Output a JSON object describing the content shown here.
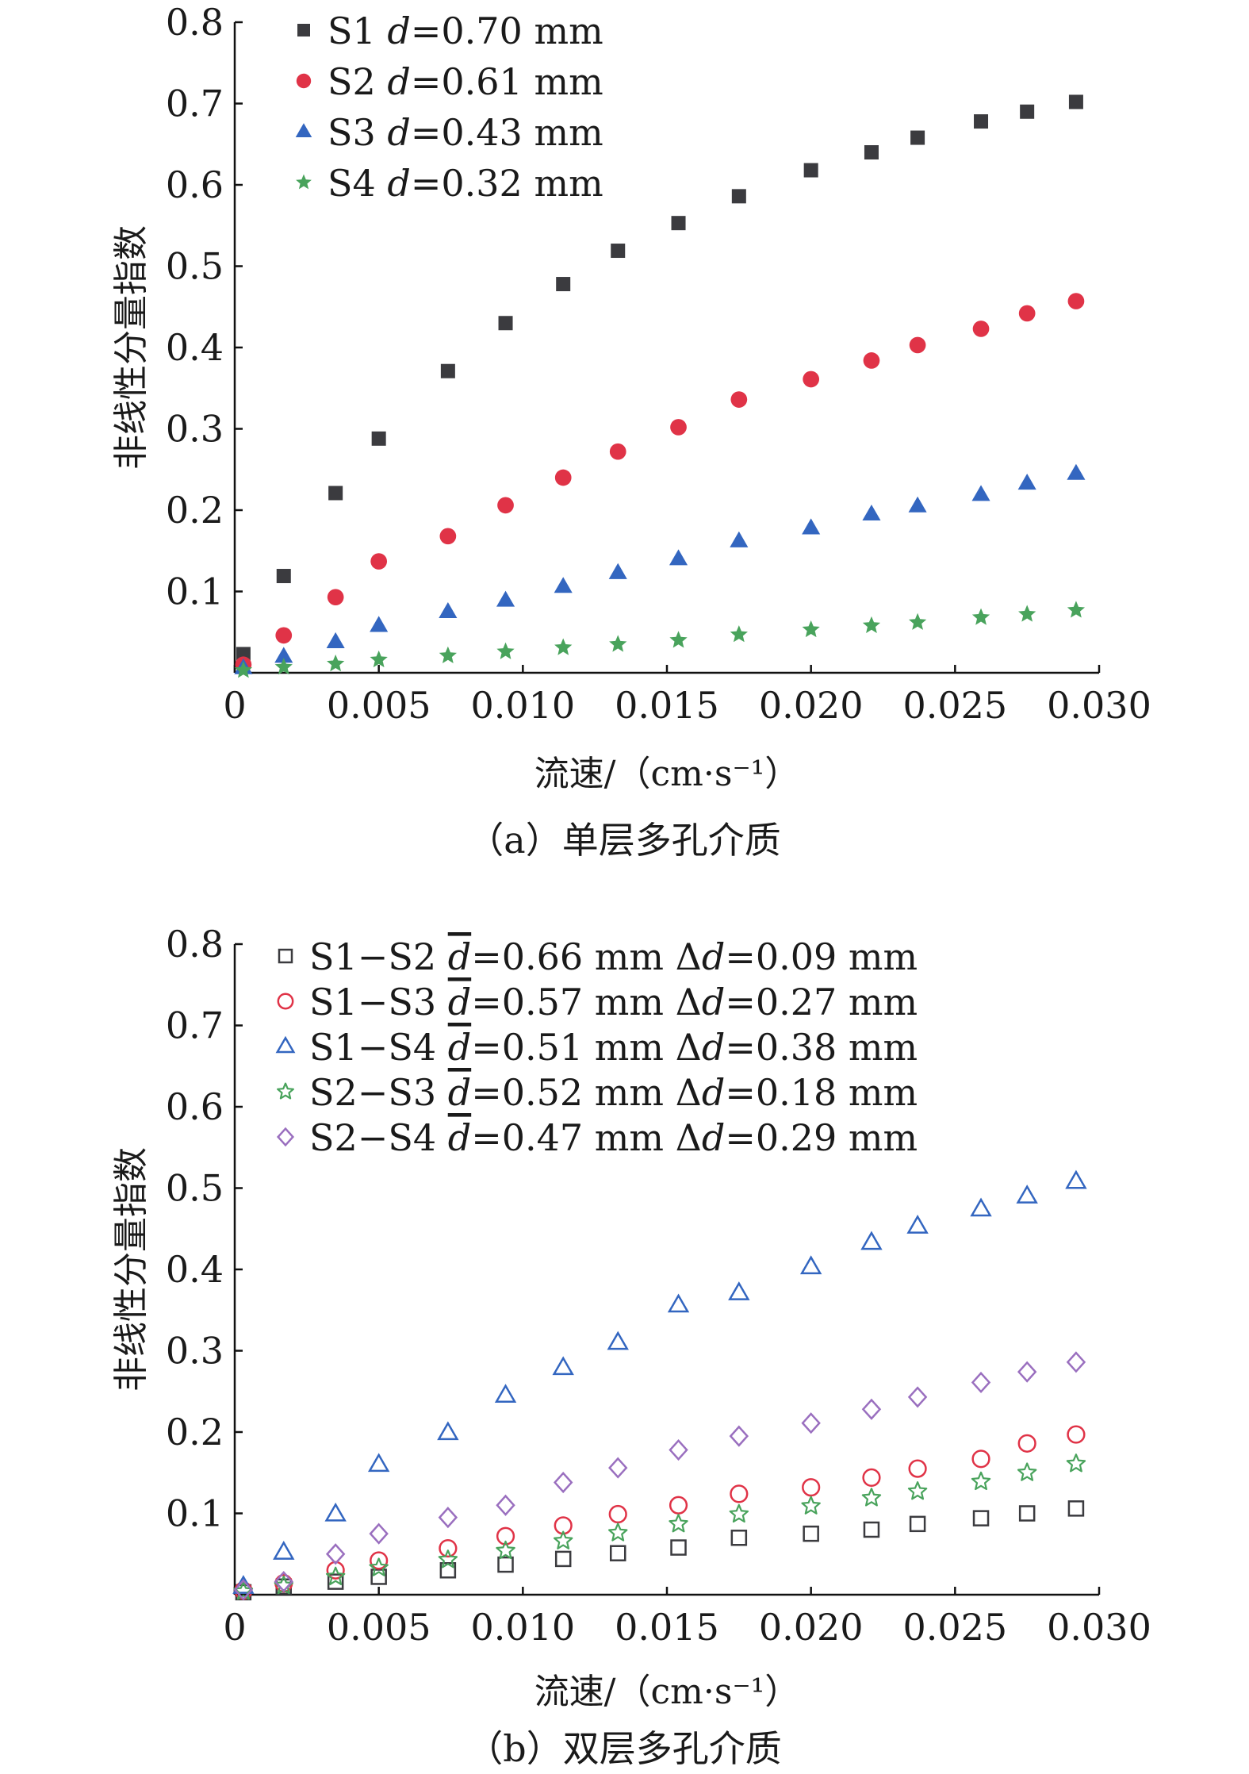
{
  "colors": {
    "S1": "#3b3b3f",
    "S2": "#e03347",
    "S3": "#3366c0",
    "S4": "#49a35c",
    "S2S4": "#9a6fbf"
  },
  "chart_data": [
    {
      "type": "scatter",
      "title": "",
      "xlabel": "流速/（cm·s⁻¹）",
      "ylabel": "非线性分量指数",
      "caption": "（a）单层多孔介质",
      "xlim": [
        0,
        0.03
      ],
      "ylim": [
        0,
        0.8
      ],
      "x_ticks": [
        "0",
        "0.005",
        "0.010",
        "0.015",
        "0.020",
        "0.025",
        "0.030"
      ],
      "y_ticks": [
        "0.1",
        "0.2",
        "0.3",
        "0.4",
        "0.5",
        "0.6",
        "0.7",
        "0.8"
      ],
      "legend_position": "top-left",
      "grid": false,
      "x": [
        0.0003,
        0.0017,
        0.0035,
        0.005,
        0.0074,
        0.0094,
        0.0114,
        0.0133,
        0.0154,
        0.0175,
        0.02,
        0.0221,
        0.0237,
        0.0259,
        0.0275,
        0.0292
      ],
      "series": [
        {
          "label": "S1 ",
          "label_italic": "d",
          "label_tail": "=0.70 mm",
          "marker": "square-filled",
          "color_key": "S1",
          "values": [
            0.023,
            0.119,
            0.221,
            0.288,
            0.371,
            0.43,
            0.478,
            0.519,
            0.553,
            0.586,
            0.618,
            0.64,
            0.658,
            0.678,
            0.69,
            0.702
          ]
        },
        {
          "label": "S2 ",
          "label_italic": "d",
          "label_tail": "=0.61 mm",
          "marker": "circle-filled",
          "color_key": "S2",
          "values": [
            0.01,
            0.046,
            0.093,
            0.137,
            0.168,
            0.206,
            0.24,
            0.272,
            0.302,
            0.336,
            0.361,
            0.384,
            0.403,
            0.423,
            0.442,
            0.457
          ]
        },
        {
          "label": "S3 ",
          "label_italic": "d",
          "label_tail": "=0.43 mm",
          "marker": "triangle-filled",
          "color_key": "S3",
          "values": [
            0.006,
            0.02,
            0.038,
            0.058,
            0.075,
            0.089,
            0.106,
            0.123,
            0.14,
            0.162,
            0.178,
            0.195,
            0.205,
            0.219,
            0.233,
            0.245
          ]
        },
        {
          "label": "S4 ",
          "label_italic": "d",
          "label_tail": "=0.32 mm",
          "marker": "star-filled",
          "color_key": "S4",
          "values": [
            0.003,
            0.007,
            0.011,
            0.016,
            0.021,
            0.026,
            0.031,
            0.035,
            0.04,
            0.047,
            0.053,
            0.058,
            0.062,
            0.068,
            0.072,
            0.077
          ]
        }
      ]
    },
    {
      "type": "scatter",
      "title": "",
      "xlabel": "流速/（cm·s⁻¹）",
      "ylabel": "非线性分量指数",
      "caption": "（b）双层多孔介质",
      "xlim": [
        0,
        0.03
      ],
      "ylim": [
        0,
        0.8
      ],
      "x_ticks": [
        "0",
        "0.005",
        "0.010",
        "0.015",
        "0.020",
        "0.025",
        "0.030"
      ],
      "y_ticks": [
        "0.1",
        "0.2",
        "0.3",
        "0.4",
        "0.5",
        "0.6",
        "0.7",
        "0.8"
      ],
      "legend_position": "top-left",
      "grid": false,
      "x": [
        0.0003,
        0.0017,
        0.0035,
        0.005,
        0.0074,
        0.0094,
        0.0114,
        0.0133,
        0.0154,
        0.0175,
        0.02,
        0.0221,
        0.0237,
        0.0259,
        0.0275,
        0.0292
      ],
      "series": [
        {
          "label": "S1−S2 ",
          "label_italic": "d",
          "label_tail": "=0.66 mm Δ",
          "label_italic2": "d",
          "label_tail2": "=0.09 mm",
          "marker": "square-open",
          "color_key": "S1",
          "values": [
            0.003,
            0.01,
            0.016,
            0.022,
            0.03,
            0.037,
            0.044,
            0.051,
            0.058,
            0.07,
            0.075,
            0.08,
            0.087,
            0.094,
            0.1,
            0.106
          ]
        },
        {
          "label": "S1−S3 ",
          "label_italic": "d",
          "label_tail": "=0.57 mm Δ",
          "label_italic2": "d",
          "label_tail2": "=0.27 mm",
          "marker": "circle-open",
          "color_key": "S2",
          "values": [
            0.005,
            0.014,
            0.03,
            0.042,
            0.057,
            0.072,
            0.085,
            0.099,
            0.11,
            0.124,
            0.132,
            0.144,
            0.155,
            0.167,
            0.186,
            0.197
          ]
        },
        {
          "label": "S1−S4 ",
          "label_italic": "d",
          "label_tail": "=0.51 mm Δ",
          "label_italic2": "d",
          "label_tail2": "=0.38 mm",
          "marker": "triangle-open",
          "color_key": "S3",
          "values": [
            0.01,
            0.052,
            0.099,
            0.16,
            0.199,
            0.245,
            0.279,
            0.31,
            0.356,
            0.371,
            0.403,
            0.433,
            0.453,
            0.474,
            0.49,
            0.508
          ]
        },
        {
          "label": "S2−S3 ",
          "label_italic": "d",
          "label_tail": "=0.52 mm Δ",
          "label_italic2": "d",
          "label_tail2": "=0.18 mm",
          "marker": "star-open",
          "color_key": "S4",
          "values": [
            0.004,
            0.011,
            0.022,
            0.033,
            0.043,
            0.054,
            0.066,
            0.076,
            0.087,
            0.099,
            0.109,
            0.119,
            0.127,
            0.139,
            0.15,
            0.161
          ]
        },
        {
          "label": "S2−S4 ",
          "label_italic": "d",
          "label_tail": "=0.47 mm Δ",
          "label_italic2": "d",
          "label_tail2": "=0.29 mm",
          "marker": "diamond-open",
          "color_key": "S2S4",
          "values": [
            0.006,
            0.016,
            0.05,
            0.075,
            0.095,
            0.11,
            0.138,
            0.156,
            0.178,
            0.195,
            0.211,
            0.228,
            0.243,
            0.261,
            0.274,
            0.286
          ]
        }
      ]
    }
  ]
}
